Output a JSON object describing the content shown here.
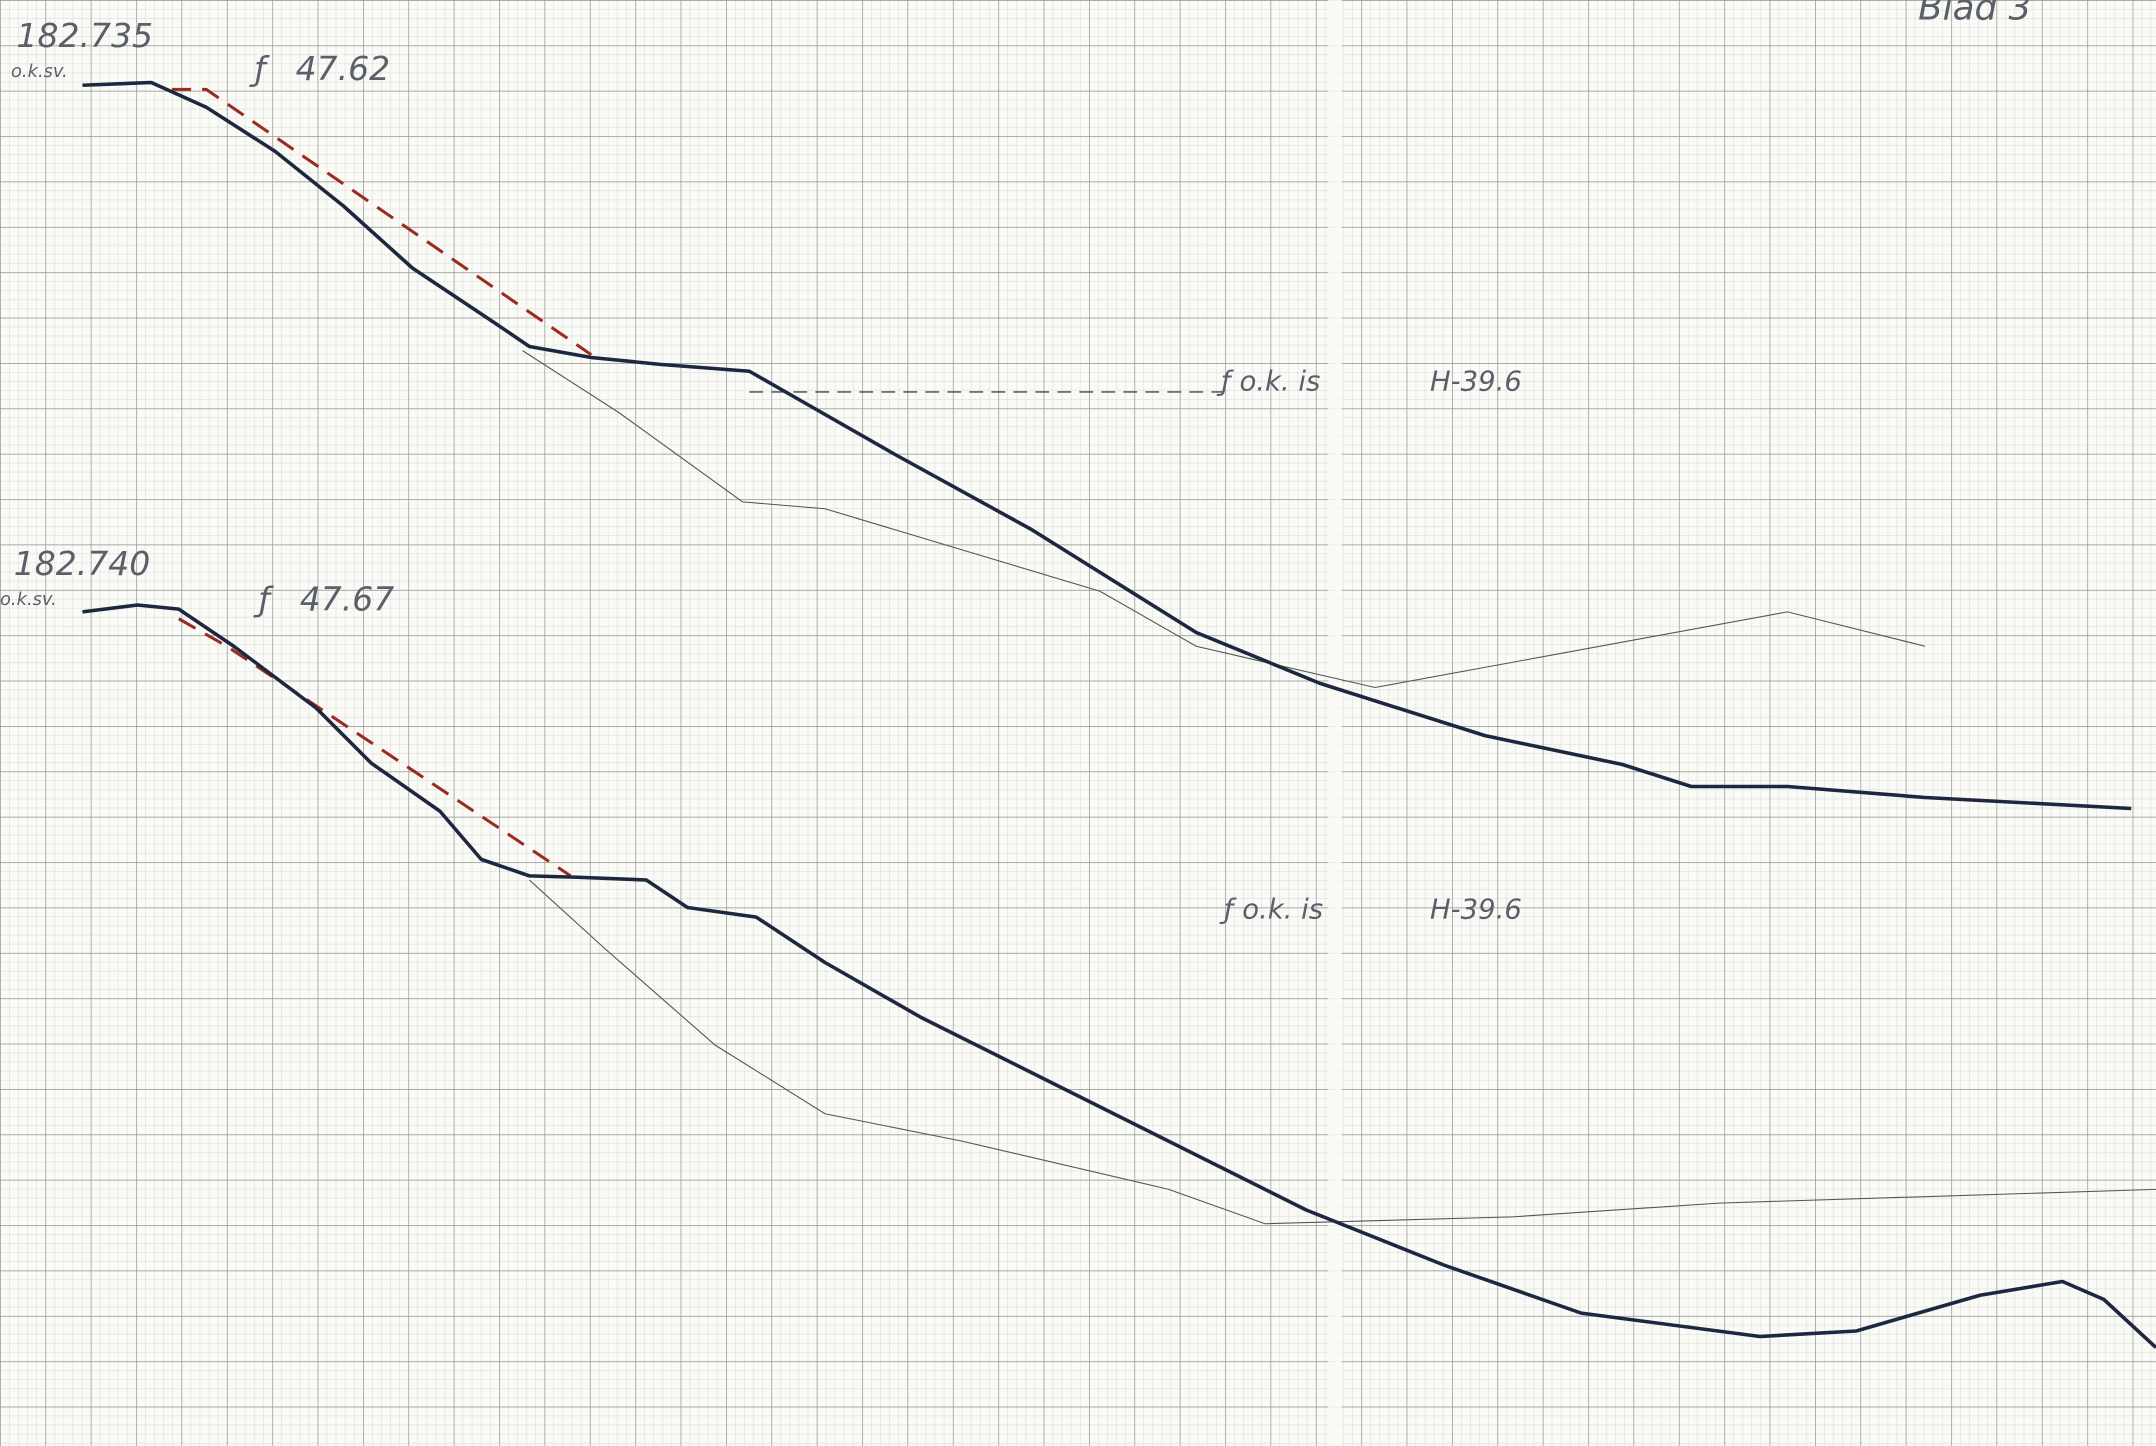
{
  "header": {
    "sheet": "Blad 3"
  },
  "profiles": [
    {
      "station": "182.735",
      "note": "o.k.sv.",
      "level": "47.62",
      "ice_note": "o.k. is",
      "ice_height": "H-39.6"
    },
    {
      "station": "182.740",
      "note": "o.k.sv.",
      "level": "47.67",
      "ice_note": "o.k. is",
      "ice_height": "H-39.6"
    }
  ]
}
